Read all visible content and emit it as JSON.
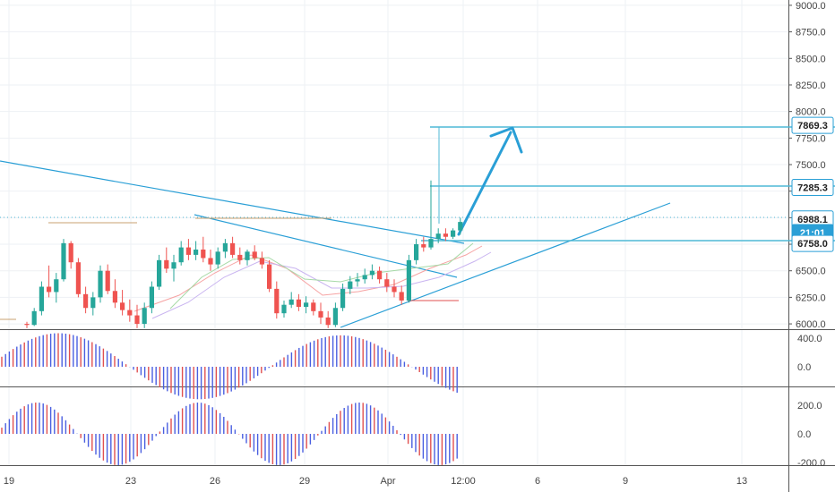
{
  "chart_data": {
    "type": "candlestick",
    "colors": {
      "up": "#26a69a",
      "down": "#ef5350",
      "trendline": "#2a9fd6",
      "target_arrow": "#2a9fd6",
      "level_line": "#4fb9d6",
      "grid": "#eef1f4",
      "macd_up": "#4a5fe0",
      "macd_down": "#e05050"
    },
    "x_axis": {
      "labels": [
        "19",
        "23",
        "26",
        "29",
        "Apr",
        "12:00",
        "6",
        "9",
        "13"
      ]
    },
    "price_axis": {
      "ylim": [
        5950,
        9050
      ],
      "ticks": [
        "9000.0",
        "8750.0",
        "8500.0",
        "8250.0",
        "8000.0",
        "7750.0",
        "7500.0",
        "7250.0",
        "7000.0",
        "6750.0",
        "6500.0",
        "6250.0",
        "6000.0"
      ]
    },
    "price_tags": [
      {
        "label": "7869.3",
        "value": 7869.3,
        "style": "outline"
      },
      {
        "label": "7285.3",
        "value": 7285.3,
        "style": "outline"
      },
      {
        "label": "6988.1",
        "value": 6988.1,
        "style": "outline"
      },
      {
        "label": "21:01",
        "value": 6860,
        "style": "filled"
      },
      {
        "label": "6758.0",
        "value": 6758.0,
        "style": "outline"
      }
    ],
    "candles": [
      [
        6000,
        6020,
        5960,
        5990
      ],
      [
        5990,
        6150,
        5980,
        6120
      ],
      [
        6120,
        6400,
        6080,
        6350
      ],
      [
        6350,
        6550,
        6250,
        6300
      ],
      [
        6300,
        6480,
        6200,
        6420
      ],
      [
        6420,
        6800,
        6400,
        6760
      ],
      [
        6760,
        6780,
        6520,
        6580
      ],
      [
        6580,
        6620,
        6250,
        6280
      ],
      [
        6280,
        6350,
        6100,
        6150
      ],
      [
        6150,
        6300,
        6080,
        6250
      ],
      [
        6250,
        6550,
        6200,
        6500
      ],
      [
        6500,
        6560,
        6280,
        6310
      ],
      [
        6310,
        6420,
        6150,
        6200
      ],
      [
        6200,
        6320,
        6080,
        6130
      ],
      [
        6130,
        6230,
        6020,
        6080
      ],
      [
        6080,
        6180,
        5960,
        6000
      ],
      [
        6000,
        6200,
        5960,
        6150
      ],
      [
        6150,
        6400,
        6100,
        6350
      ],
      [
        6350,
        6650,
        6320,
        6600
      ],
      [
        6600,
        6720,
        6480,
        6520
      ],
      [
        6520,
        6650,
        6400,
        6580
      ],
      [
        6580,
        6780,
        6550,
        6720
      ],
      [
        6720,
        6800,
        6600,
        6650
      ],
      [
        6650,
        6780,
        6600,
        6700
      ],
      [
        6700,
        6820,
        6580,
        6620
      ],
      [
        6620,
        6700,
        6500,
        6560
      ],
      [
        6560,
        6720,
        6520,
        6680
      ],
      [
        6680,
        6800,
        6620,
        6760
      ],
      [
        6760,
        6820,
        6620,
        6650
      ],
      [
        6650,
        6720,
        6560,
        6600
      ],
      [
        6600,
        6700,
        6550,
        6680
      ],
      [
        6680,
        6740,
        6600,
        6620
      ],
      [
        6620,
        6680,
        6520,
        6560
      ],
      [
        6560,
        6600,
        6300,
        6330
      ],
      [
        6330,
        6400,
        6050,
        6100
      ],
      [
        6100,
        6220,
        6060,
        6180
      ],
      [
        6180,
        6300,
        6150,
        6230
      ],
      [
        6230,
        6280,
        6120,
        6160
      ],
      [
        6160,
        6260,
        6100,
        6200
      ],
      [
        6200,
        6230,
        6080,
        6120
      ],
      [
        6120,
        6200,
        6000,
        6060
      ],
      [
        6060,
        6120,
        5960,
        5990
      ],
      [
        5990,
        6200,
        5970,
        6150
      ],
      [
        6150,
        6380,
        6120,
        6330
      ],
      [
        6330,
        6450,
        6280,
        6400
      ],
      [
        6400,
        6480,
        6350,
        6420
      ],
      [
        6420,
        6520,
        6380,
        6460
      ],
      [
        6460,
        6560,
        6420,
        6500
      ],
      [
        6500,
        6540,
        6380,
        6420
      ],
      [
        6420,
        6480,
        6300,
        6350
      ],
      [
        6350,
        6420,
        6250,
        6300
      ],
      [
        6300,
        6360,
        6180,
        6220
      ],
      [
        6220,
        6650,
        6200,
        6600
      ],
      [
        6600,
        6800,
        6560,
        6750
      ],
      [
        6750,
        6820,
        6680,
        6720
      ],
      [
        6720,
        7350,
        6700,
        6800
      ],
      [
        6800,
        6900,
        6760,
        6850
      ],
      [
        6850,
        6900,
        6780,
        6820
      ],
      [
        6820,
        6900,
        6800,
        6880
      ],
      [
        6880,
        7000,
        6840,
        6960
      ]
    ]
  }
}
